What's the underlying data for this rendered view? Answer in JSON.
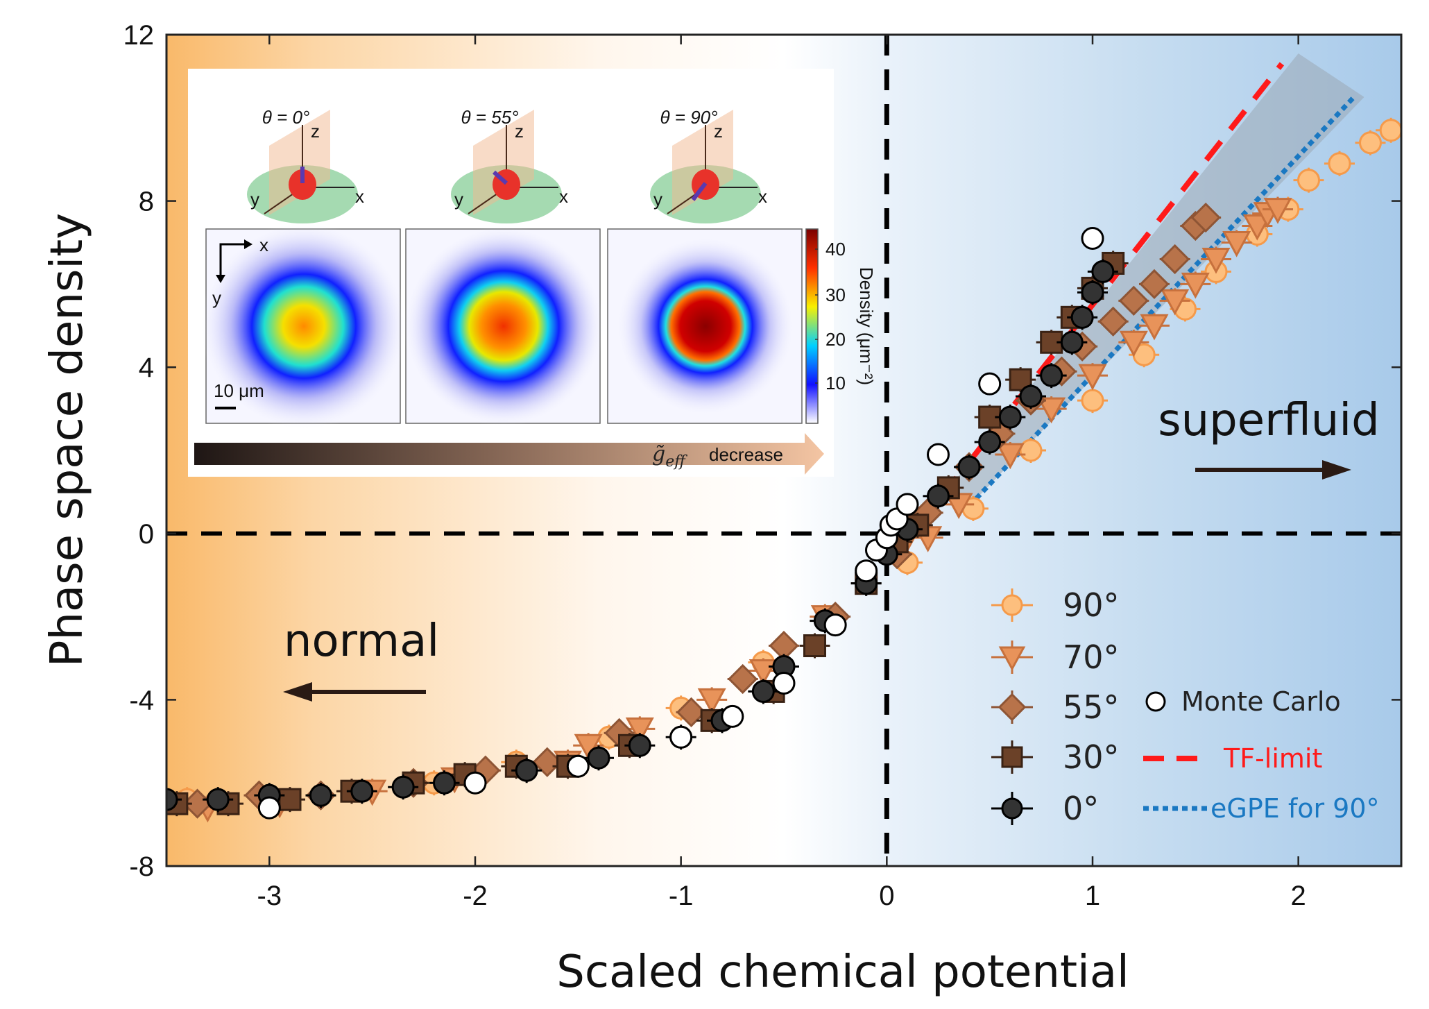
{
  "chart_data": {
    "type": "scatter",
    "xlabel": "Scaled chemical potential",
    "ylabel": "Phase space density",
    "xlim": [
      -3.5,
      2.5
    ],
    "ylim": [
      -8,
      12
    ],
    "xticks": [
      -3,
      -2,
      -1,
      0,
      1,
      2
    ],
    "yticks": [
      -8,
      -4,
      0,
      4,
      8,
      12
    ],
    "grid": false,
    "legend_placement": "bottom-right",
    "reference_lines": {
      "x": 0,
      "y": 0,
      "style": "dashed",
      "color": "#000000"
    },
    "regions": [
      {
        "label": "normal",
        "side": "left",
        "color": "#f9b96a"
      },
      {
        "label": "superfluid",
        "side": "right",
        "color": "#a8caea"
      }
    ],
    "series": [
      {
        "name": "90°",
        "marker": "circle",
        "color": "#fdbf7e",
        "edge": "#f59a4a",
        "points": [
          [
            -3.4,
            -6.4
          ],
          [
            -2.2,
            -6.0
          ],
          [
            -1.8,
            -5.5
          ],
          [
            -1.35,
            -4.9
          ],
          [
            -1.0,
            -4.2
          ],
          [
            -0.6,
            -3.1
          ],
          [
            0.1,
            -0.7
          ],
          [
            0.42,
            0.6
          ],
          [
            0.7,
            2.0
          ],
          [
            1.0,
            3.2
          ],
          [
            1.25,
            4.3
          ],
          [
            1.45,
            5.4
          ],
          [
            1.6,
            6.3
          ],
          [
            1.8,
            7.2
          ],
          [
            1.95,
            7.8
          ],
          [
            2.05,
            8.5
          ],
          [
            2.2,
            8.9
          ],
          [
            2.35,
            9.4
          ],
          [
            2.45,
            9.7
          ]
        ]
      },
      {
        "name": "70°",
        "marker": "triangle-down",
        "color": "#e8935a",
        "edge": "#c7713d",
        "points": [
          [
            -3.3,
            -6.6
          ],
          [
            -2.95,
            -6.5
          ],
          [
            -2.5,
            -6.2
          ],
          [
            -2.1,
            -5.9
          ],
          [
            -1.55,
            -5.5
          ],
          [
            -1.45,
            -5.1
          ],
          [
            -1.2,
            -4.7
          ],
          [
            -0.85,
            -4.0
          ],
          [
            -0.6,
            -3.3
          ],
          [
            -0.3,
            -2.0
          ],
          [
            0.1,
            -0.1
          ],
          [
            0.2,
            -0.1
          ],
          [
            0.35,
            0.7
          ],
          [
            0.6,
            1.9
          ],
          [
            0.8,
            3.0
          ],
          [
            1.0,
            3.8
          ],
          [
            1.2,
            4.6
          ],
          [
            1.3,
            5.0
          ],
          [
            1.4,
            5.6
          ],
          [
            1.5,
            6.0
          ],
          [
            1.6,
            6.6
          ],
          [
            1.7,
            7.0
          ],
          [
            1.8,
            7.4
          ],
          [
            1.85,
            7.7
          ],
          [
            1.9,
            7.8
          ]
        ]
      },
      {
        "name": "55°",
        "marker": "diamond",
        "color": "#b8734a",
        "edge": "#8e5535",
        "points": [
          [
            -3.35,
            -6.5
          ],
          [
            -3.05,
            -6.3
          ],
          [
            -2.75,
            -6.3
          ],
          [
            -2.3,
            -6.0
          ],
          [
            -1.95,
            -5.7
          ],
          [
            -1.65,
            -5.5
          ],
          [
            -1.3,
            -4.8
          ],
          [
            -0.95,
            -4.3
          ],
          [
            -0.7,
            -3.5
          ],
          [
            -0.5,
            -2.7
          ],
          [
            -0.25,
            -2.0
          ],
          [
            0.05,
            -0.5
          ],
          [
            0.2,
            0.5
          ],
          [
            0.4,
            1.6
          ],
          [
            0.55,
            2.4
          ],
          [
            0.7,
            3.2
          ],
          [
            0.85,
            3.9
          ],
          [
            0.95,
            4.5
          ],
          [
            1.1,
            5.1
          ],
          [
            1.2,
            5.6
          ],
          [
            1.3,
            6.0
          ],
          [
            1.4,
            6.6
          ],
          [
            1.5,
            7.4
          ],
          [
            1.55,
            7.6
          ]
        ]
      },
      {
        "name": "30°",
        "marker": "square",
        "color": "#6b4128",
        "edge": "#3a2214",
        "points": [
          [
            -3.45,
            -6.5
          ],
          [
            -3.2,
            -6.5
          ],
          [
            -2.9,
            -6.4
          ],
          [
            -2.6,
            -6.2
          ],
          [
            -2.3,
            -6.0
          ],
          [
            -2.05,
            -5.8
          ],
          [
            -1.8,
            -5.6
          ],
          [
            -1.55,
            -5.6
          ],
          [
            -1.25,
            -5.1
          ],
          [
            -0.85,
            -4.5
          ],
          [
            -0.55,
            -3.8
          ],
          [
            -0.35,
            -2.7
          ],
          [
            -0.1,
            -1.2
          ],
          [
            0.05,
            -0.2
          ],
          [
            0.15,
            0.2
          ],
          [
            0.3,
            1.1
          ],
          [
            0.5,
            2.8
          ],
          [
            0.65,
            3.7
          ],
          [
            0.8,
            4.6
          ],
          [
            0.9,
            5.2
          ],
          [
            1.0,
            5.9
          ],
          [
            1.1,
            6.5
          ]
        ]
      },
      {
        "name": "0°",
        "marker": "circle",
        "color": "#333333",
        "edge": "#000000",
        "points": [
          [
            -3.5,
            -6.4
          ],
          [
            -3.25,
            -6.4
          ],
          [
            -3.0,
            -6.3
          ],
          [
            -2.75,
            -6.3
          ],
          [
            -2.55,
            -6.2
          ],
          [
            -2.35,
            -6.1
          ],
          [
            -2.15,
            -6.0
          ],
          [
            -1.75,
            -5.7
          ],
          [
            -1.4,
            -5.4
          ],
          [
            -1.2,
            -5.1
          ],
          [
            -1.0,
            -4.9
          ],
          [
            -0.8,
            -4.5
          ],
          [
            -0.6,
            -3.8
          ],
          [
            -0.5,
            -3.2
          ],
          [
            -0.3,
            -2.1
          ],
          [
            -0.1,
            -1.2
          ],
          [
            0.0,
            -0.5
          ],
          [
            0.1,
            0.1
          ],
          [
            0.25,
            0.9
          ],
          [
            0.4,
            1.6
          ],
          [
            0.5,
            2.2
          ],
          [
            0.6,
            2.8
          ],
          [
            0.7,
            3.3
          ],
          [
            0.8,
            3.8
          ],
          [
            0.9,
            4.6
          ],
          [
            0.95,
            5.2
          ],
          [
            1.0,
            5.8
          ],
          [
            1.05,
            6.3
          ]
        ]
      },
      {
        "name": "Monte Carlo",
        "marker": "circle-open",
        "color": "#ffffff",
        "edge": "#000000",
        "points": [
          [
            -3.0,
            -6.6
          ],
          [
            -2.0,
            -6.0
          ],
          [
            -1.5,
            -5.6
          ],
          [
            -1.0,
            -4.9
          ],
          [
            -0.75,
            -4.4
          ],
          [
            -0.5,
            -3.6
          ],
          [
            -0.25,
            -2.2
          ],
          [
            -0.1,
            -0.9
          ],
          [
            -0.05,
            -0.4
          ],
          [
            0.0,
            -0.1
          ],
          [
            0.02,
            0.2
          ],
          [
            0.05,
            0.35
          ],
          [
            0.1,
            0.7
          ],
          [
            0.25,
            1.9
          ],
          [
            0.5,
            3.6
          ],
          [
            1.0,
            7.1
          ]
        ]
      }
    ],
    "lines": [
      {
        "name": "TF-limit",
        "style": "dashed",
        "color": "#ff1a1a",
        "points": [
          [
            0.27,
            0.9
          ],
          [
            1.92,
            11.3
          ]
        ]
      },
      {
        "name": "eGPE for 90°",
        "style": "dotted",
        "color": "#1a78c2",
        "points": [
          [
            0.37,
            0.5
          ],
          [
            2.27,
            10.5
          ]
        ]
      }
    ],
    "shaded_band": {
      "color": "#9aa8b4",
      "points": [
        [
          0.27,
          0.9
        ],
        [
          2.0,
          11.55
        ],
        [
          2.32,
          10.5
        ],
        [
          0.37,
          0.5
        ]
      ]
    },
    "annotations": {
      "normal": "normal",
      "superfluid": "superfluid"
    },
    "inset": {
      "angles": [
        "θ = 0°",
        "θ = 55°",
        "θ = 90°"
      ],
      "axis_labels": {
        "x": "x",
        "y": "y",
        "z": "z"
      },
      "scale_bar": "10 μm",
      "colorbar": {
        "label": "Density (μm⁻²)",
        "ticks": [
          "10",
          "20",
          "30",
          "40"
        ]
      },
      "arrow_label": "decrease",
      "arrow_symbol": "g̃",
      "arrow_subscript": "eff"
    }
  }
}
